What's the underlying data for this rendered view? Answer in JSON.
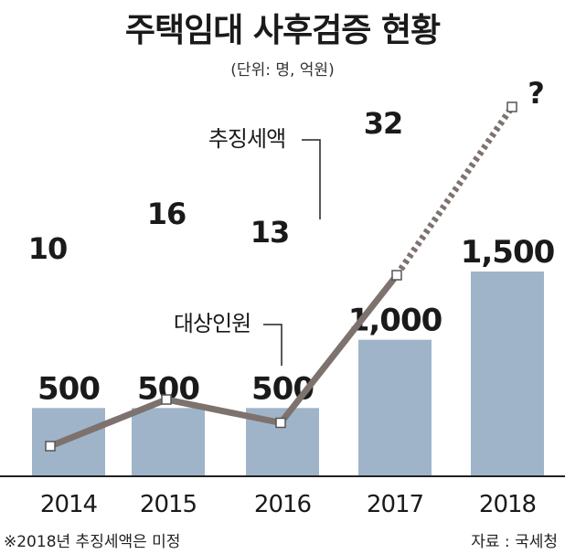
{
  "title": "주택임대 사후검증 현황",
  "unit": "(단위: 명, 억원)",
  "note": "※2018년 추징세액은 미정",
  "source": "자료 : 국세청",
  "chart_data": {
    "type": "bar",
    "categories": [
      "2014",
      "2015",
      "2016",
      "2017",
      "2018"
    ],
    "series": [
      {
        "name": "대상인원",
        "type": "bar",
        "values": [
          500,
          500,
          500,
          1000,
          1500
        ],
        "labels": [
          "500",
          "500",
          "500",
          "1,000",
          "1,500"
        ]
      },
      {
        "name": "추징세액",
        "type": "line",
        "values": [
          10,
          16,
          13,
          32,
          null
        ],
        "labels": [
          "10",
          "16",
          "13",
          "32",
          "?"
        ]
      }
    ],
    "bar_color": "#9fb4c8",
    "line_color": "#7d726e",
    "ylim_bar": [
      0,
      1700
    ],
    "ylim_line": [
      0,
      45
    ]
  }
}
